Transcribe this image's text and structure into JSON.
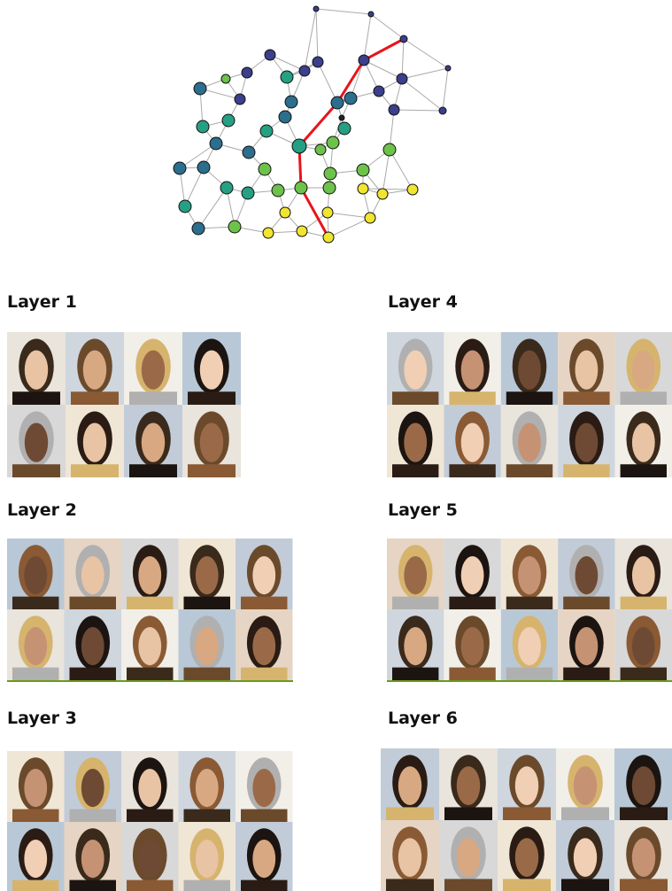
{
  "layers": [
    {
      "title": "Layer 1"
    },
    {
      "title": "Layer 2"
    },
    {
      "title": "Layer 3"
    },
    {
      "title": "Layer 4"
    },
    {
      "title": "Layer 5"
    },
    {
      "title": "Layer 6"
    }
  ]
}
